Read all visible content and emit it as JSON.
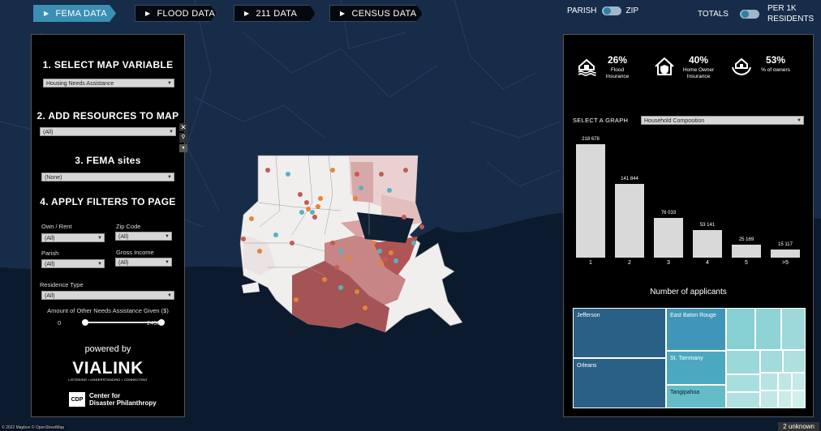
{
  "tabs": [
    {
      "label": "FEMA DATA",
      "active": true
    },
    {
      "label": "FLOOD DATA",
      "active": false
    },
    {
      "label": "211 DATA",
      "active": false
    },
    {
      "label": "CENSUS DATA",
      "active": false
    }
  ],
  "toggles": {
    "geo_left": "PARISH",
    "geo_right": "ZIP",
    "metric_left": "TOTALS",
    "metric_right_line1": "PER 1K",
    "metric_right_line2": "RESIDENTS"
  },
  "left_panel": {
    "section1_title": "1. SELECT MAP VARIABLE",
    "map_variable": "Housing Needs Assistance",
    "section2_title": "2. ADD RESOURCES TO MAP",
    "resources": "(All)",
    "section3_title": "3. FEMA sites",
    "fema_sites": "(None)",
    "section4_title": "4. APPLY FILTERS TO PAGE",
    "own_rent_label": "Own / Rent",
    "own_rent_value": "(All)",
    "zip_label": "Zip Code",
    "zip_value": "(All)",
    "parish_label": "Parish",
    "parish_value": "(All)",
    "income_label": "Gross Income",
    "income_value": "(All)",
    "residence_label": "Residence Type",
    "residence_value": "(All)",
    "amount_label": "Amount of Other Needs Assistance Given ($)",
    "amount_min": "0",
    "amount_max": "24500",
    "powered_by": "powered by",
    "vialink": "VIALINK",
    "vialink_tagline": "LISTENING • UNDERSTANDING • CONNECTING",
    "cdp_logo": "CDP",
    "cdp_line1": "Center for",
    "cdp_line2": "Disaster Philanthropy"
  },
  "stats": [
    {
      "pct": "26%",
      "label1": "Flood",
      "label2": "Insurance",
      "icon": "flood-house-icon"
    },
    {
      "pct": "40%",
      "label1": "Home Owner",
      "label2": "Insurance",
      "icon": "home-shield-icon"
    },
    {
      "pct": "53%",
      "label1": "% of owners",
      "label2": "",
      "icon": "hands-house-icon"
    }
  ],
  "graph": {
    "select_label": "SELECT A  GRAPH",
    "selected": "Household Composition"
  },
  "chart_data": {
    "type": "bar",
    "categories": [
      "1",
      "2",
      "3",
      "4",
      "5",
      ">5"
    ],
    "values": [
      218678,
      141844,
      76033,
      53141,
      25169,
      15117
    ],
    "value_labels": [
      "218 678",
      "141 844",
      "76 033",
      "53 141",
      "25 169",
      "15 117"
    ],
    "xlabel": "Number of applicants",
    "ylabel": ""
  },
  "treemap": {
    "cells": [
      {
        "label": "Jefferson"
      },
      {
        "label": "Orleans"
      },
      {
        "label": "East Baton Rouge"
      },
      {
        "label": "St. Tammany"
      },
      {
        "label": "Tangipahoa"
      }
    ]
  },
  "footer": {
    "attribution": "© 2022 Mapbox © OpenStreetMap",
    "unknown": "2 unknown"
  },
  "colors": {
    "accent": "#3a8fb4",
    "background": "#0c1a2e",
    "treemap_dark": "#2a5f86",
    "treemap_mid": "#4aa8c0",
    "treemap_light": "#8fd3d6"
  }
}
